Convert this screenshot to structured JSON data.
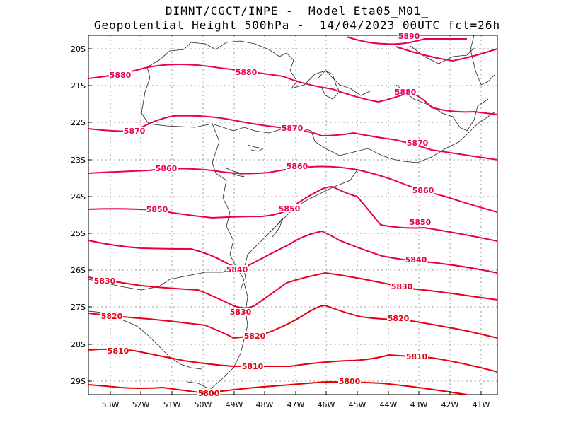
{
  "title": {
    "line1": "DIMNT/CGCT/INPE -  Model Eta05_M01_",
    "line2": "Geopotential Height 500hPa -  14/04/2023 00UTC fct=26h"
  },
  "axes": {
    "lat_labels": [
      "20S",
      "21S",
      "22S",
      "23S",
      "24S",
      "25S",
      "26S",
      "27S",
      "28S",
      "29S"
    ],
    "lon_labels": [
      "53W",
      "52W",
      "51W",
      "50W",
      "49W",
      "48W",
      "47W",
      "46W",
      "45W",
      "44W",
      "43W",
      "42W",
      "41W"
    ]
  },
  "contours": [
    {
      "value": 5890,
      "color": "#e8005a",
      "labels": [
        "5890"
      ]
    },
    {
      "value": 5880,
      "color": "#e8005a",
      "labels": [
        "5880",
        "5880",
        "5880"
      ]
    },
    {
      "value": 5870,
      "color": "#e8005a",
      "labels": [
        "5870",
        "5870",
        "5870"
      ]
    },
    {
      "value": 5860,
      "color": "#e8005a",
      "labels": [
        "5860",
        "5860",
        "5860"
      ]
    },
    {
      "value": 5850,
      "color": "#e8004a",
      "labels": [
        "5850",
        "5850",
        "5850"
      ]
    },
    {
      "value": 5840,
      "color": "#e8003a",
      "labels": [
        "5840",
        "5840"
      ]
    },
    {
      "value": 5830,
      "color": "#e8002a",
      "labels": [
        "5830",
        "5830",
        "5830"
      ]
    },
    {
      "value": 5820,
      "color": "#e8001c",
      "labels": [
        "5820",
        "5820",
        "5820"
      ]
    },
    {
      "value": 5810,
      "color": "#e8000e",
      "labels": [
        "5810",
        "5810",
        "5810"
      ]
    },
    {
      "value": 5800,
      "color": "#e80000",
      "labels": [
        "5800",
        "5800"
      ]
    }
  ]
}
